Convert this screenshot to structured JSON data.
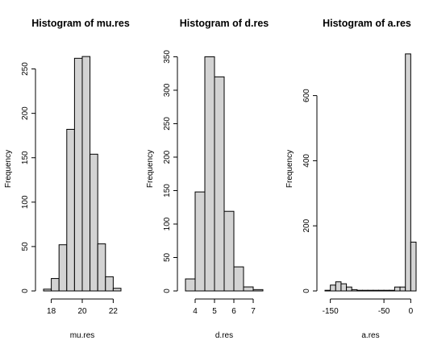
{
  "chart_data": [
    {
      "type": "bar",
      "title": "Histogram of mu.res",
      "xlabel": "mu.res",
      "ylabel": "Frequency",
      "bin_edges": [
        17.5,
        18,
        18.5,
        19,
        19.5,
        20,
        20.5,
        21,
        21.5,
        22,
        22.5
      ],
      "values": [
        2,
        14,
        52,
        182,
        262,
        264,
        154,
        53,
        16,
        3
      ],
      "xlim": [
        17.5,
        22.5
      ],
      "ylim": [
        0,
        275
      ],
      "xticks": [
        18,
        20,
        22
      ],
      "yticks": [
        0,
        50,
        100,
        150,
        200,
        250
      ]
    },
    {
      "type": "bar",
      "title": "Histogram of d.res",
      "xlabel": "d.res",
      "ylabel": "Frequency",
      "bin_edges": [
        3.5,
        4,
        4.5,
        5,
        5.5,
        6,
        6.5,
        7,
        7.5
      ],
      "values": [
        18,
        148,
        350,
        320,
        119,
        36,
        6,
        2
      ],
      "xlim": [
        3.5,
        7.5
      ],
      "ylim": [
        0,
        365
      ],
      "xticks": [
        4,
        5,
        6,
        7
      ],
      "yticks": [
        0,
        50,
        100,
        150,
        200,
        250,
        300,
        350
      ]
    },
    {
      "type": "bar",
      "title": "Histogram of a.res",
      "xlabel": "a.res",
      "ylabel": "Frequency",
      "bin_edges": [
        -160,
        -150,
        -140,
        -130,
        -120,
        -110,
        -100,
        -90,
        -80,
        -70,
        -60,
        -50,
        -40,
        -30,
        -20,
        -10,
        0,
        10
      ],
      "values": [
        2,
        18,
        28,
        22,
        12,
        4,
        2,
        2,
        2,
        2,
        2,
        2,
        2,
        12,
        12,
        728,
        150
      ],
      "xlim": [
        -160,
        10
      ],
      "ylim": [
        0,
        750
      ],
      "xticks": [
        -150,
        -50,
        0
      ],
      "yticks": [
        0,
        200,
        400,
        600
      ]
    }
  ]
}
